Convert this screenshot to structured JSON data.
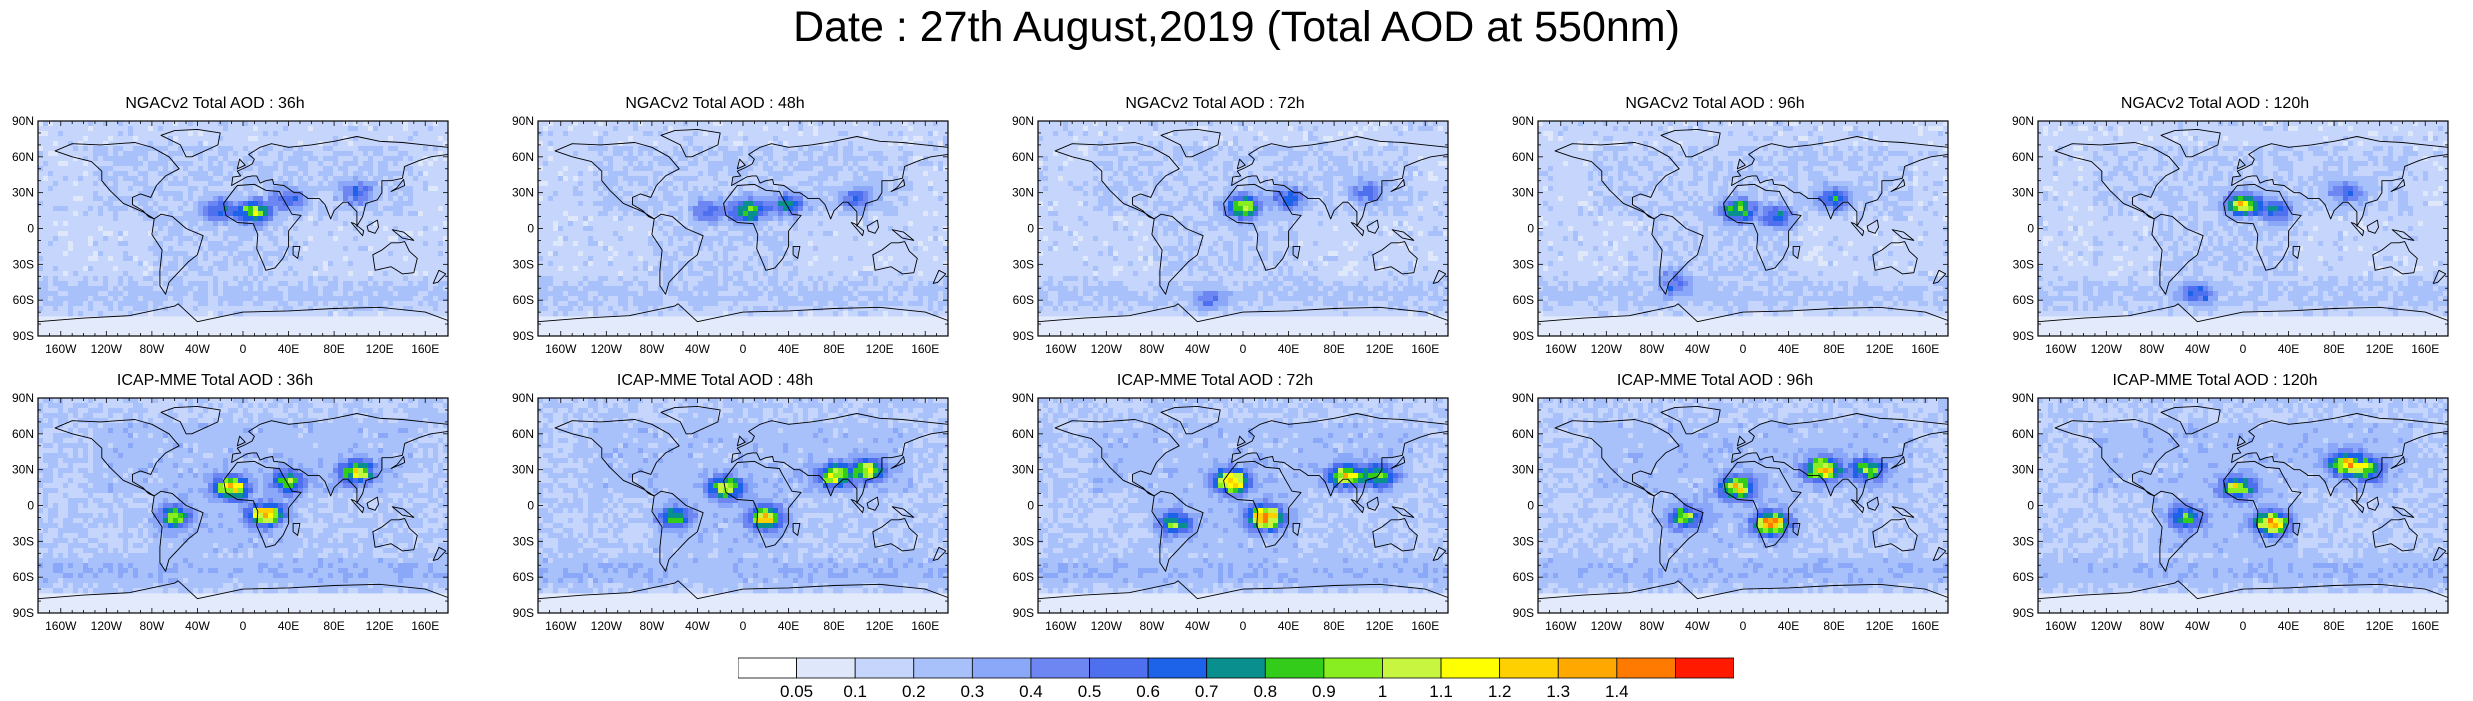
{
  "title": "Date : 27th August,2019 (Total AOD at 550nm)",
  "lat_ticks": [
    "90N",
    "60N",
    "30N",
    "0",
    "30S",
    "60S",
    "90S"
  ],
  "lon_ticks": [
    "160W",
    "120W",
    "80W",
    "40W",
    "0",
    "40E",
    "80E",
    "120E",
    "160E"
  ],
  "lon_values": [
    -160,
    -120,
    -80,
    -40,
    0,
    40,
    80,
    120,
    160
  ],
  "lat_values": [
    90,
    60,
    30,
    0,
    -30,
    -60,
    -90
  ],
  "rows": [
    {
      "model": "NGACv2",
      "panels": [
        {
          "title": "NGACv2 Total AOD : 36h",
          "hotspots": [
            [
              10,
              14,
              0.8
            ],
            [
              40,
              25,
              0.4
            ],
            [
              -20,
              15,
              0.5
            ],
            [
              100,
              30,
              0.4
            ]
          ]
        },
        {
          "title": "NGACv2 Total AOD : 48h",
          "hotspots": [
            [
              5,
              15,
              0.8
            ],
            [
              40,
              20,
              0.5
            ],
            [
              100,
              25,
              0.4
            ],
            [
              -30,
              15,
              0.4
            ]
          ]
        },
        {
          "title": "NGACv2 Total AOD : 72h",
          "hotspots": [
            [
              0,
              18,
              0.9
            ],
            [
              40,
              25,
              0.5
            ],
            [
              110,
              30,
              0.4
            ],
            [
              -30,
              -60,
              0.3
            ]
          ]
        },
        {
          "title": "NGACv2 Total AOD : 96h",
          "hotspots": [
            [
              -5,
              15,
              0.8
            ],
            [
              30,
              10,
              0.5
            ],
            [
              80,
              25,
              0.5
            ],
            [
              -60,
              -45,
              0.4
            ]
          ]
        },
        {
          "title": "NGACv2 Total AOD : 120h",
          "hotspots": [
            [
              0,
              20,
              0.9
            ],
            [
              30,
              15,
              0.5
            ],
            [
              90,
              30,
              0.4
            ],
            [
              -40,
              -55,
              0.4
            ]
          ]
        }
      ]
    },
    {
      "model": "ICAP-MME",
      "panels": [
        {
          "title": "ICAP-MME Total AOD : 36h",
          "hotspots": [
            [
              20,
              -8,
              1.1
            ],
            [
              -10,
              15,
              1.0
            ],
            [
              100,
              28,
              0.9
            ],
            [
              -60,
              -10,
              0.7
            ],
            [
              40,
              20,
              0.7
            ]
          ]
        },
        {
          "title": "ICAP-MME Total AOD : 48h",
          "hotspots": [
            [
              20,
              -10,
              1.0
            ],
            [
              -15,
              15,
              0.9
            ],
            [
              80,
              25,
              0.9
            ],
            [
              -60,
              -10,
              0.6
            ],
            [
              110,
              30,
              0.8
            ]
          ]
        },
        {
          "title": "ICAP-MME Total AOD : 72h",
          "hotspots": [
            [
              20,
              -10,
              1.3
            ],
            [
              -10,
              20,
              1.2
            ],
            [
              90,
              25,
              0.9
            ],
            [
              -60,
              -15,
              0.7
            ],
            [
              120,
              25,
              0.7
            ]
          ]
        },
        {
          "title": "ICAP-MME Total AOD : 96h",
          "hotspots": [
            [
              25,
              -15,
              1.2
            ],
            [
              -5,
              15,
              1.0
            ],
            [
              70,
              30,
              1.1
            ],
            [
              -50,
              -10,
              0.7
            ],
            [
              110,
              30,
              0.7
            ]
          ]
        },
        {
          "title": "ICAP-MME Total AOD : 120h",
          "hotspots": [
            [
              25,
              -15,
              1.1
            ],
            [
              -5,
              15,
              0.8
            ],
            [
              90,
              35,
              0.9
            ],
            [
              -50,
              -10,
              0.6
            ],
            [
              110,
              30,
              0.7
            ]
          ]
        }
      ]
    }
  ],
  "colorbar": {
    "levels": [
      "0.05",
      "0.1",
      "0.2",
      "0.3",
      "0.4",
      "0.5",
      "0.6",
      "0.7",
      "0.8",
      "0.9",
      "1",
      "1.1",
      "1.2",
      "1.3",
      "1.4"
    ],
    "colors": [
      "#ffffff",
      "#dfe7fb",
      "#c6d5fb",
      "#a8c1fb",
      "#8aa8f7",
      "#6e86f1",
      "#4e6fee",
      "#1d63ea",
      "#0a8f8f",
      "#33cc1a",
      "#88ee22",
      "#c7f540",
      "#ffff00",
      "#ffd000",
      "#ffa800",
      "#ff7a00",
      "#ff1a00"
    ]
  }
}
